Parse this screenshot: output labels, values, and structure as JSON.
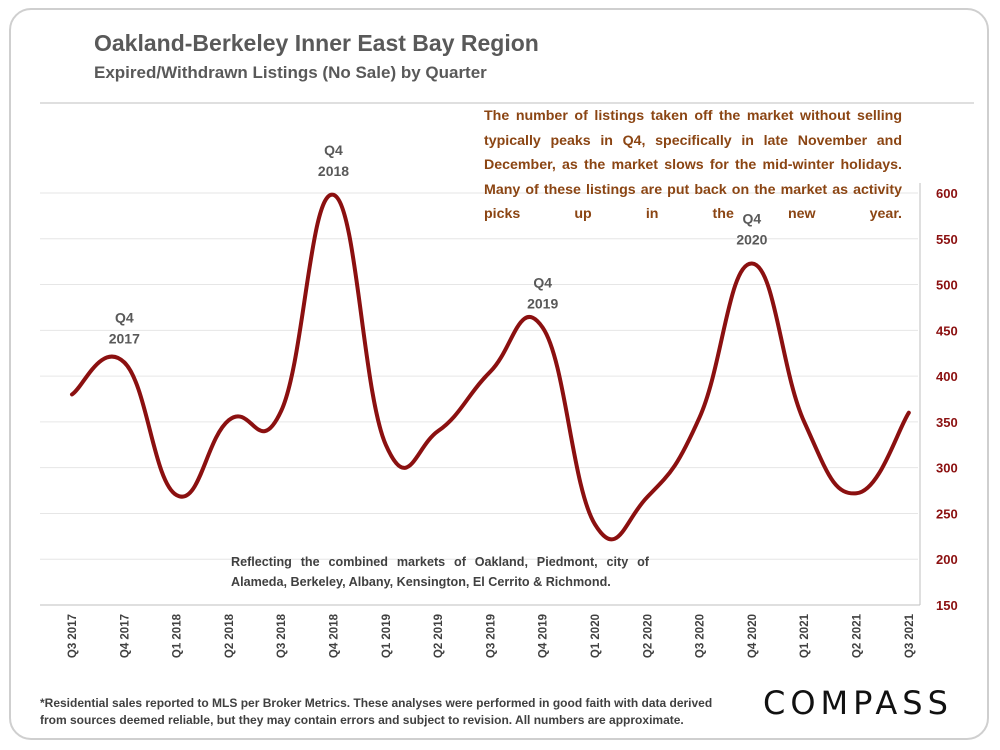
{
  "header": {
    "title": "Oakland-Berkeley Inner East Bay Region",
    "subtitle": "Expired/Withdrawn Listings (No Sale) by Quarter"
  },
  "note": "The number of listings taken off the market without selling typically peaks in Q4, specifically in late November and December, as the market slows for the mid-winter holidays. Many of these listings are put back on the market as activity picks up in the new year.",
  "markets_note": "Reflecting the combined markets of Oakland, Piedmont, city of Alameda, Berkeley, Albany, Kensington, El Cerrito & Richmond.",
  "footnote": "*Residential sales reported to MLS per Broker Metrics. These analyses were performed in good faith with data derived from sources deemed reliable, but they may contain errors and subject to revision. All numbers are approximate.",
  "logo_text": "COMPASS",
  "colors": {
    "line": "#8B1010",
    "axis_text": "#8B1010",
    "note_text": "#8B4513",
    "grid": "#e6e6e6"
  },
  "chart_data": {
    "type": "line",
    "title": "Expired/Withdrawn Listings (No Sale) by Quarter",
    "categories": [
      "Q3 2017",
      "Q4 2017",
      "Q1 2018",
      "Q2 2018",
      "Q3 2018",
      "Q4 2018",
      "Q1 2019",
      "Q2 2019",
      "Q3 2019",
      "Q4 2019",
      "Q1 2020",
      "Q2 2020",
      "Q3 2020",
      "Q4 2020",
      "Q1 2021",
      "Q2 2021",
      "Q3 2021"
    ],
    "series": [
      {
        "name": "Expired/Withdrawn Listings",
        "values": [
          380,
          415,
          270,
          352,
          362,
          598,
          325,
          340,
          405,
          453,
          238,
          268,
          355,
          523,
          350,
          272,
          360
        ]
      }
    ],
    "ylim": [
      150,
      600
    ],
    "yticks": [
      150,
      200,
      250,
      300,
      350,
      400,
      450,
      500,
      550,
      600
    ],
    "y_axis_side": "right",
    "annotations": [
      {
        "category": "Q4 2017",
        "line1": "Q4",
        "line2": "2017"
      },
      {
        "category": "Q4 2018",
        "line1": "Q4",
        "line2": "2018"
      },
      {
        "category": "Q4 2019",
        "line1": "Q4",
        "line2": "2019"
      },
      {
        "category": "Q4 2020",
        "line1": "Q4",
        "line2": "2020"
      }
    ],
    "grid": true
  }
}
